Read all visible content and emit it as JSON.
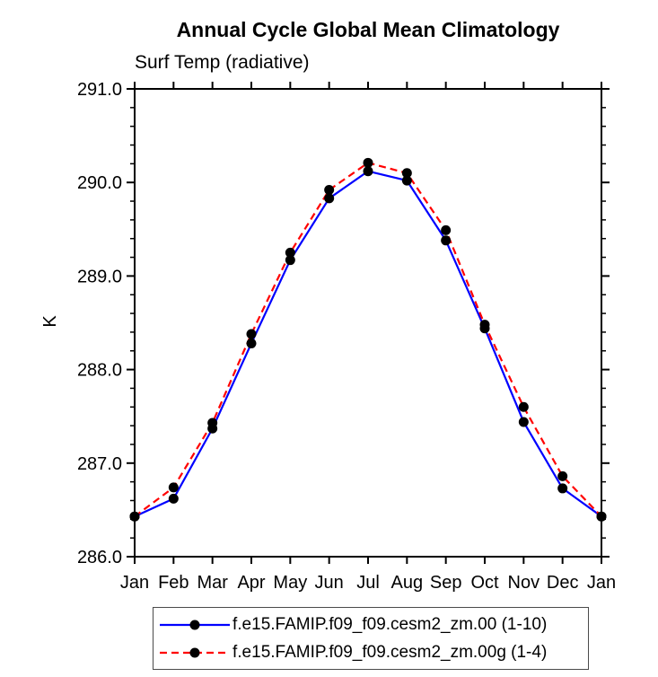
{
  "chart_data": {
    "type": "line",
    "title": "Annual Cycle Global Mean Climatology",
    "subtitle": "Surf Temp (radiative)",
    "ylabel": "K",
    "x_categories": [
      "Jan",
      "Feb",
      "Mar",
      "Apr",
      "May",
      "Jun",
      "Jul",
      "Aug",
      "Sep",
      "Oct",
      "Nov",
      "Dec",
      "Jan"
    ],
    "ylim": [
      286.0,
      291.0
    ],
    "yticks": [
      286.0,
      287.0,
      288.0,
      289.0,
      290.0,
      291.0
    ],
    "ytick_decimals": 1,
    "minor_ticks_per_interval": 4,
    "grid": false,
    "legend_position": "bottom",
    "axis_color": "#000000",
    "marker_color": "#000000",
    "series": [
      {
        "name": "f.e15.FAMIP.f09_f09.cesm2_zm.00 (1-10)",
        "color": "#0000ff",
        "line_style": "solid",
        "values": [
          286.43,
          286.62,
          287.37,
          288.28,
          289.17,
          289.83,
          290.12,
          290.02,
          289.38,
          288.44,
          287.44,
          286.73,
          286.43
        ]
      },
      {
        "name": "f.e15.FAMIP.f09_f09.cesm2_zm.00g (1-4)",
        "color": "#ff0000",
        "line_style": "dashed",
        "values": [
          286.43,
          286.74,
          287.43,
          288.38,
          289.25,
          289.92,
          290.21,
          290.1,
          289.49,
          288.48,
          287.6,
          286.86,
          286.43
        ]
      }
    ]
  }
}
